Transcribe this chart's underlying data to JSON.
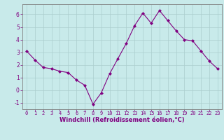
{
  "x": [
    0,
    1,
    2,
    3,
    4,
    5,
    6,
    7,
    8,
    9,
    10,
    11,
    12,
    13,
    14,
    15,
    16,
    17,
    18,
    19,
    20,
    21,
    22,
    23
  ],
  "y": [
    3.1,
    2.4,
    1.8,
    1.7,
    1.5,
    1.4,
    0.8,
    0.4,
    -1.1,
    -0.2,
    1.3,
    2.5,
    3.7,
    5.1,
    6.1,
    5.3,
    6.3,
    5.5,
    4.7,
    4.0,
    3.9,
    3.1,
    2.3,
    1.7
  ],
  "line_color": "#800080",
  "marker_color": "#800080",
  "bg_color": "#c8eaea",
  "grid_color": "#aacece",
  "axis_color": "#800080",
  "spine_color": "#808080",
  "xlabel": "Windchill (Refroidissement éolien,°C)",
  "xlim": [
    -0.5,
    23.5
  ],
  "ylim": [
    -1.5,
    6.8
  ],
  "yticks": [
    -1,
    0,
    1,
    2,
    3,
    4,
    5,
    6
  ],
  "xticks": [
    0,
    1,
    2,
    3,
    4,
    5,
    6,
    7,
    8,
    9,
    10,
    11,
    12,
    13,
    14,
    15,
    16,
    17,
    18,
    19,
    20,
    21,
    22,
    23
  ],
  "tick_fontsize": 5.0,
  "xlabel_fontsize": 6.0,
  "ylabel_fontsize": 5.0
}
